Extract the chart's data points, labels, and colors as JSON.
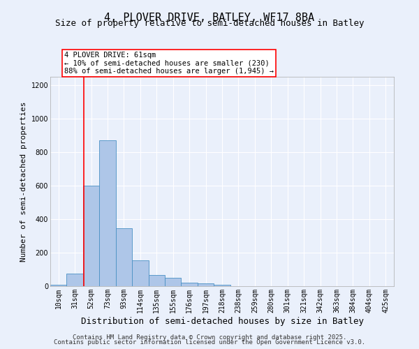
{
  "title1": "4, PLOVER DRIVE, BATLEY, WF17 8BA",
  "title2": "Size of property relative to semi-detached houses in Batley",
  "xlabel": "Distribution of semi-detached houses by size in Batley",
  "ylabel": "Number of semi-detached properties",
  "categories": [
    "10sqm",
    "31sqm",
    "52sqm",
    "73sqm",
    "93sqm",
    "114sqm",
    "135sqm",
    "155sqm",
    "176sqm",
    "197sqm",
    "218sqm",
    "238sqm",
    "259sqm",
    "280sqm",
    "301sqm",
    "321sqm",
    "342sqm",
    "363sqm",
    "384sqm",
    "404sqm",
    "425sqm"
  ],
  "values": [
    10,
    75,
    600,
    870,
    345,
    155,
    65,
    48,
    20,
    15,
    10,
    0,
    0,
    0,
    0,
    0,
    0,
    0,
    0,
    0,
    0
  ],
  "bar_color": "#aec6e8",
  "bar_edge_color": "#4a90c4",
  "ylim": [
    0,
    1250
  ],
  "yticks": [
    0,
    200,
    400,
    600,
    800,
    1000,
    1200
  ],
  "red_line_x": 1.55,
  "annotation_text": "4 PLOVER DRIVE: 61sqm\n← 10% of semi-detached houses are smaller (230)\n88% of semi-detached houses are larger (1,945) →",
  "footer1": "Contains HM Land Registry data © Crown copyright and database right 2025.",
  "footer2": "Contains public sector information licensed under the Open Government Licence v3.0.",
  "bg_color": "#eaf0fb",
  "grid_color": "#ffffff",
  "title1_fontsize": 11,
  "title2_fontsize": 9,
  "xlabel_fontsize": 9,
  "ylabel_fontsize": 8,
  "tick_fontsize": 7,
  "annotation_fontsize": 7.5,
  "footer_fontsize": 6.5
}
